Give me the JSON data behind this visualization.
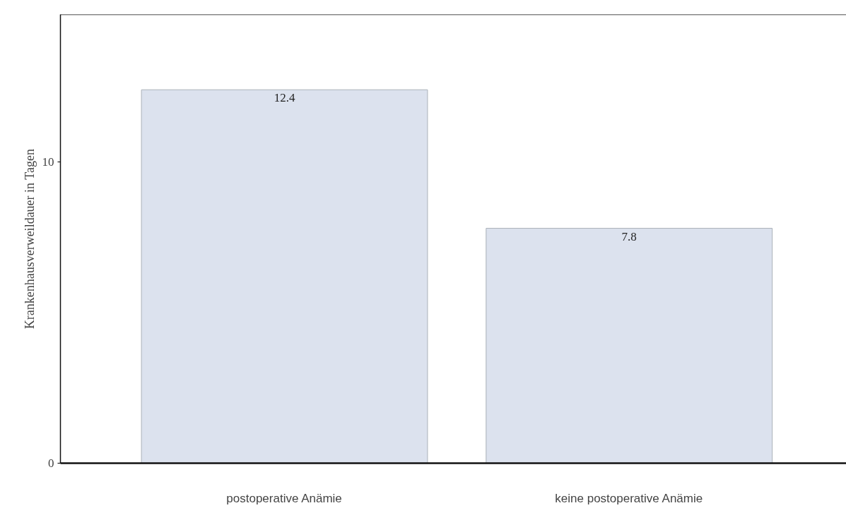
{
  "chart_data": {
    "type": "bar",
    "ylabel": "Krankenhausverweildauer in Tagen",
    "categories": [
      "postoperative Anämie",
      "keine postoperative Anämie"
    ],
    "values": [
      12.4,
      7.8
    ],
    "color": "#dce2ee",
    "ylim": [
      0,
      14.9
    ],
    "yticks": [
      0,
      10
    ],
    "grid": false,
    "data_labels": true
  }
}
